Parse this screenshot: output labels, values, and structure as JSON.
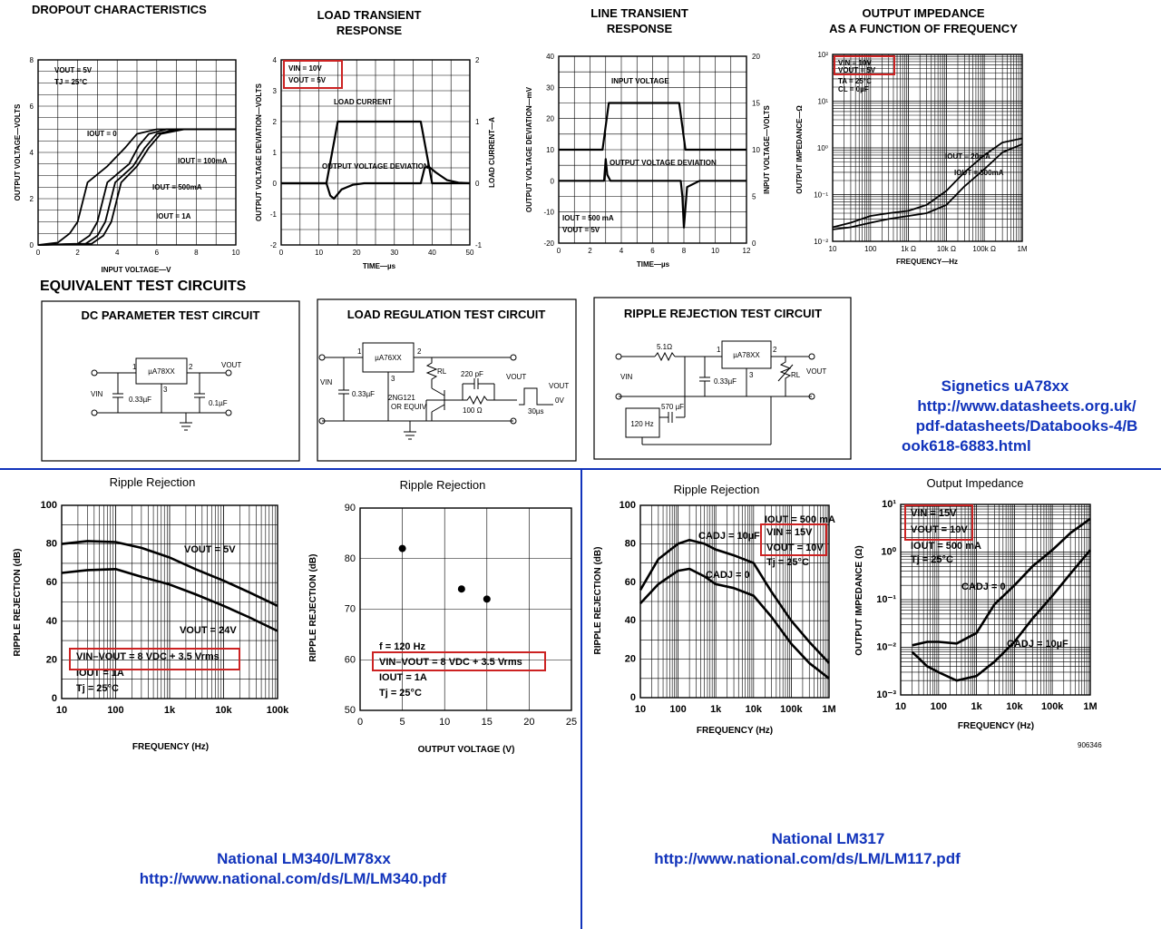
{
  "section_heading": "EQUIVALENT TEST CIRCUITS",
  "colors": {
    "highlight": "#cc2222",
    "link": "#1133bb",
    "divider": "#1133bb"
  },
  "sources": {
    "signetics": {
      "name": "Signetics uA78xx",
      "url_1": "http://www.datasheets.org.uk/",
      "url_2": "pdf-datasheets/Databooks-4/B",
      "url_3": "ook618-6883.html"
    },
    "lm340": {
      "name": "National LM340/LM78xx",
      "url": "http://www.national.com/ds/LM/LM340.pdf"
    },
    "lm317": {
      "name": "National LM317",
      "url": "http://www.national.com/ds/LM/LM117.pdf"
    }
  },
  "circuits": {
    "dc": {
      "title": "DC PARAMETER TEST CIRCUIT",
      "ic": "µA78XX",
      "pin1": "1",
      "pin2": "2",
      "pin3": "3",
      "vin": "VIN",
      "vout": "VOUT",
      "c_in": "0.33µF",
      "c_out": "0.1µF"
    },
    "load": {
      "title": "LOAD REGULATION TEST CIRCUIT",
      "ic": "µA76XX",
      "pin1": "1",
      "pin2": "2",
      "pin3": "3",
      "vin": "VIN",
      "vout": "VOUT",
      "c_in": "0.33µF",
      "rl": "RL",
      "cap": "220 pF",
      "res": "100 Ω",
      "transistor_1": "2NG121",
      "transistor_2": "OR EQUIV",
      "pulse_vout": "VOUT",
      "pulse_ov": "0V",
      "pulse_t": "30µs"
    },
    "ripple": {
      "title": "RIPPLE REJECTION TEST CIRCUIT",
      "ic": "µA78XX",
      "pin1": "1",
      "pin2": "2",
      "pin3": "3",
      "vin": "VIN",
      "vout": "VOUT",
      "r_in": "5.1Ω",
      "c_in": "0.33µF",
      "c_couple": "570 µF",
      "gen": "120 Hz",
      "rl": "RL"
    }
  },
  "chart_data": [
    {
      "id": "dropout",
      "type": "line",
      "title": "DROPOUT CHARACTERISTICS",
      "xlabel": "INPUT VOLTAGE—V",
      "ylabel": "OUTPUT VOLTAGE—VOLTS",
      "xlim": [
        0,
        10
      ],
      "ylim": [
        0,
        8
      ],
      "x_ticks": [
        "0",
        "2",
        "4",
        "6",
        "8",
        "10"
      ],
      "y_ticks": [
        "0",
        "2",
        "4",
        "6",
        "8"
      ],
      "grid": true,
      "conditions": [
        "VOUT = 5V",
        "TJ = 25°C"
      ],
      "series": [
        {
          "name": "IOUT = 0",
          "x": [
            0,
            1.0,
            1.6,
            2.0,
            2.5,
            3.5,
            4.4,
            5.0,
            6.0,
            10
          ],
          "y": [
            0,
            0.1,
            0.5,
            1.0,
            2.7,
            3.4,
            4.2,
            4.8,
            5.0,
            5.0
          ]
        },
        {
          "name": "IOUT = 100mA",
          "x": [
            0,
            2.0,
            2.6,
            3.0,
            3.5,
            4.6,
            5.1,
            5.6,
            6.5,
            10
          ],
          "y": [
            0,
            0.05,
            0.4,
            1.0,
            2.7,
            3.5,
            4.3,
            4.8,
            5.0,
            5.0
          ]
        },
        {
          "name": "IOUT = 500mA",
          "x": [
            0,
            2.4,
            3.0,
            3.4,
            3.9,
            4.8,
            5.4,
            6.0,
            7.0,
            10
          ],
          "y": [
            0,
            0.05,
            0.4,
            1.0,
            2.7,
            3.4,
            4.2,
            4.8,
            5.0,
            5.0
          ]
        },
        {
          "name": "IOUT = 1A",
          "x": [
            0,
            2.7,
            3.3,
            3.7,
            4.2,
            5.0,
            5.6,
            6.2,
            7.4,
            10
          ],
          "y": [
            0,
            0.05,
            0.4,
            1.0,
            2.7,
            3.4,
            4.2,
            4.8,
            5.0,
            5.0
          ]
        }
      ]
    },
    {
      "id": "load_transient",
      "type": "line",
      "title_1": "LOAD TRANSIENT",
      "title_2": "RESPONSE",
      "xlabel": "TIME—µs",
      "ylabel": "OUTPUT VOLTAGE DEVIATION—VOLTS",
      "y2label": "LOAD CURRENT—A",
      "xlim": [
        0,
        50
      ],
      "ylim": [
        -2,
        4
      ],
      "y2lim": [
        -1,
        2
      ],
      "x_ticks": [
        "0",
        "10",
        "20",
        "30",
        "40",
        "50"
      ],
      "y_ticks": [
        "-2",
        "-1",
        "0",
        "1",
        "2",
        "3",
        "4"
      ],
      "y2_ticks": [
        "-1",
        "0",
        "1",
        "2"
      ],
      "grid": true,
      "conditions": [
        "VIN = 10V",
        "VOUT = 5V"
      ],
      "series": [
        {
          "name": "LOAD CURRENT",
          "axis": "right",
          "x": [
            0,
            12,
            15,
            37,
            40,
            50
          ],
          "y": [
            0,
            0,
            1,
            1,
            0,
            0
          ]
        },
        {
          "name": "OUTPUT VOLTAGE DEVIATION",
          "axis": "left",
          "x": [
            0,
            12,
            13,
            14,
            16,
            19,
            22,
            25,
            37,
            38,
            39,
            41,
            44,
            47,
            50
          ],
          "y": [
            0,
            0,
            -0.4,
            -0.5,
            -0.2,
            -0.05,
            0,
            0,
            0,
            0.5,
            0.55,
            0.35,
            0.1,
            0.02,
            0
          ]
        }
      ]
    },
    {
      "id": "line_transient",
      "type": "line",
      "title_1": "LINE TRANSIENT",
      "title_2": "RESPONSE",
      "xlabel": "TIME—µs",
      "ylabel": "OUTPUT VOLTAGE DEVIATION—mV",
      "y2label": "INPUT VOLTAGE—VOLTS",
      "xlim": [
        0,
        12
      ],
      "ylim": [
        -20,
        40
      ],
      "y2lim": [
        0,
        20
      ],
      "x_ticks": [
        "0",
        "2",
        "4",
        "6",
        "8",
        "10",
        "12"
      ],
      "y_ticks": [
        "-20",
        "-10",
        "0",
        "10",
        "20",
        "30",
        "40"
      ],
      "y2_ticks": [
        "0",
        "5",
        "10",
        "15",
        "20"
      ],
      "grid": true,
      "conditions": [
        "IOUT = 500 mA",
        "VOUT = 5V"
      ],
      "series": [
        {
          "name": "INPUT VOLTAGE",
          "axis": "right",
          "x": [
            0,
            2.8,
            3.2,
            7.7,
            8.1,
            12
          ],
          "y": [
            10,
            10,
            15,
            15,
            10,
            10
          ]
        },
        {
          "name": "OUTPUT VOLTAGE DEVIATION",
          "axis": "left",
          "x": [
            0,
            2.9,
            3.0,
            3.1,
            3.3,
            4,
            7.8,
            7.9,
            8.0,
            8.2,
            9,
            12
          ],
          "y": [
            0,
            0,
            7,
            2,
            0,
            0,
            0,
            -5,
            -15,
            -2,
            0,
            0
          ]
        }
      ]
    },
    {
      "id": "output_impedance_sig",
      "type": "line",
      "title_1": "OUTPUT IMPEDANCE",
      "title_2": "AS A FUNCTION OF FREQUENCY",
      "xlabel": "FREQUENCY—Hz",
      "ylabel": "OUTPUT IMPEDANCE—Ω",
      "x_scale": "log",
      "y_scale": "log",
      "xlim": [
        10,
        1000000
      ],
      "ylim": [
        0.01,
        100
      ],
      "x_ticks": [
        "10",
        "100",
        "1k Ω",
        "10k Ω",
        "100k Ω",
        "1M"
      ],
      "y_ticks": [
        "10⁻²",
        "10⁻¹",
        "10⁰",
        "10¹",
        "10²"
      ],
      "grid": true,
      "conditions": [
        "VIN = 10V",
        "VOUT = 5V",
        "TA = 25°C",
        "CL = 0µF"
      ],
      "series": [
        {
          "name": "IOUT = 20mA",
          "x": [
            10,
            30,
            100,
            300,
            1000,
            3000,
            10000,
            30000,
            100000,
            300000,
            1000000
          ],
          "y": [
            0.02,
            0.025,
            0.035,
            0.04,
            0.045,
            0.06,
            0.12,
            0.3,
            0.7,
            1.3,
            1.6
          ]
        },
        {
          "name": "IOUT = 500mA",
          "x": [
            10,
            30,
            100,
            300,
            1000,
            3000,
            10000,
            30000,
            100000,
            300000,
            1000000
          ],
          "y": [
            0.018,
            0.02,
            0.025,
            0.03,
            0.035,
            0.04,
            0.06,
            0.15,
            0.35,
            0.8,
            1.2
          ]
        }
      ]
    },
    {
      "id": "ripple_lm340_freq",
      "type": "line",
      "title": "Ripple Rejection",
      "xlabel": "FREQUENCY (Hz)",
      "ylabel": "RIPPLE REJECTION (dB)",
      "x_scale": "log",
      "xlim": [
        10,
        100000
      ],
      "ylim": [
        0,
        100
      ],
      "x_ticks": [
        "10",
        "100",
        "1k",
        "10k",
        "100k"
      ],
      "y_ticks": [
        "0",
        "20",
        "40",
        "60",
        "80",
        "100"
      ],
      "grid": true,
      "conditions": [
        "VIN–VOUT = 8 VDC + 3.5 Vrms",
        "IOUT = 1A",
        "Tj = 25°C"
      ],
      "series": [
        {
          "name": "VOUT = 5V",
          "x": [
            10,
            30,
            100,
            300,
            1000,
            3000,
            10000,
            30000,
            100000
          ],
          "y": [
            80,
            81.5,
            81,
            78,
            73,
            67,
            61,
            55,
            48
          ]
        },
        {
          "name": "VOUT = 24V",
          "x": [
            10,
            30,
            100,
            300,
            1000,
            3000,
            10000,
            30000,
            100000
          ],
          "y": [
            65,
            66.5,
            67,
            63,
            59,
            54,
            48,
            42,
            35
          ]
        }
      ]
    },
    {
      "id": "ripple_lm340_vout",
      "type": "scatter",
      "title": "Ripple Rejection",
      "xlabel": "OUTPUT VOLTAGE (V)",
      "ylabel": "RIPPLE REJECTION (dB)",
      "xlim": [
        0,
        25
      ],
      "ylim": [
        50,
        90
      ],
      "x_ticks": [
        "0",
        "5",
        "10",
        "15",
        "20",
        "25"
      ],
      "y_ticks": [
        "50",
        "60",
        "70",
        "80",
        "90"
      ],
      "grid": true,
      "conditions": [
        "f = 120 Hz",
        "VIN–VOUT = 8 VDC + 3.5 Vrms",
        "IOUT = 1A",
        "Tj = 25°C"
      ],
      "series": [
        {
          "x": [
            5,
            12,
            15
          ],
          "y": [
            82,
            74,
            72
          ]
        }
      ]
    },
    {
      "id": "ripple_lm317",
      "type": "line",
      "title": "Ripple Rejection",
      "xlabel": "FREQUENCY (Hz)",
      "ylabel": "RIPPLE REJECTION (dB)",
      "x_scale": "log",
      "xlim": [
        10,
        1000000
      ],
      "ylim": [
        0,
        100
      ],
      "x_ticks": [
        "10",
        "100",
        "1k",
        "10k",
        "100k",
        "1M"
      ],
      "y_ticks": [
        "0",
        "20",
        "40",
        "60",
        "80",
        "100"
      ],
      "grid": true,
      "conditions": [
        "IOUT = 500 mA",
        "VIN = 15V",
        "VOUT = 10V",
        "Tj = 25°C"
      ],
      "series": [
        {
          "name": "CADJ = 10µF",
          "x": [
            10,
            30,
            100,
            200,
            500,
            1000,
            3000,
            10000,
            30000,
            100000,
            300000,
            1000000
          ],
          "y": [
            56,
            72,
            80,
            82,
            80,
            77,
            74,
            70,
            55,
            40,
            29,
            18
          ]
        },
        {
          "name": "CADJ = 0",
          "x": [
            10,
            30,
            100,
            200,
            500,
            1000,
            3000,
            10000,
            30000,
            100000,
            300000,
            1000000
          ],
          "y": [
            49,
            59,
            66,
            67,
            63,
            59,
            57,
            53,
            42,
            28,
            18,
            10
          ]
        }
      ]
    },
    {
      "id": "output_impedance_lm317",
      "type": "line",
      "title": "Output Impedance",
      "xlabel": "FREQUENCY (Hz)",
      "ylabel": "OUTPUT IMPEDANCE (Ω)",
      "x_scale": "log",
      "y_scale": "log",
      "xlim": [
        10,
        1000000
      ],
      "ylim": [
        0.001,
        10
      ],
      "x_ticks": [
        "10",
        "100",
        "1k",
        "10k",
        "100k",
        "1M"
      ],
      "y_ticks": [
        "10⁻³",
        "10⁻²",
        "10⁻¹",
        "10⁰",
        "10¹"
      ],
      "grid": true,
      "conditions": [
        "VIN = 15V",
        "VOUT = 10V",
        "IOUT = 500 mA",
        "Tj = 25°C"
      ],
      "footnote": "906346",
      "series": [
        {
          "name": "CADJ = 0",
          "x": [
            20,
            50,
            100,
            300,
            1000,
            3000,
            10000,
            30000,
            100000,
            300000,
            1000000
          ],
          "y": [
            0.011,
            0.013,
            0.013,
            0.012,
            0.02,
            0.08,
            0.2,
            0.5,
            1.1,
            2.5,
            5
          ]
        },
        {
          "name": "CADJ = 10µF",
          "x": [
            20,
            50,
            100,
            300,
            1000,
            3000,
            10000,
            30000,
            100000,
            300000,
            1000000
          ],
          "y": [
            0.008,
            0.004,
            0.003,
            0.002,
            0.0025,
            0.005,
            0.013,
            0.04,
            0.12,
            0.35,
            1.1
          ]
        }
      ]
    }
  ]
}
